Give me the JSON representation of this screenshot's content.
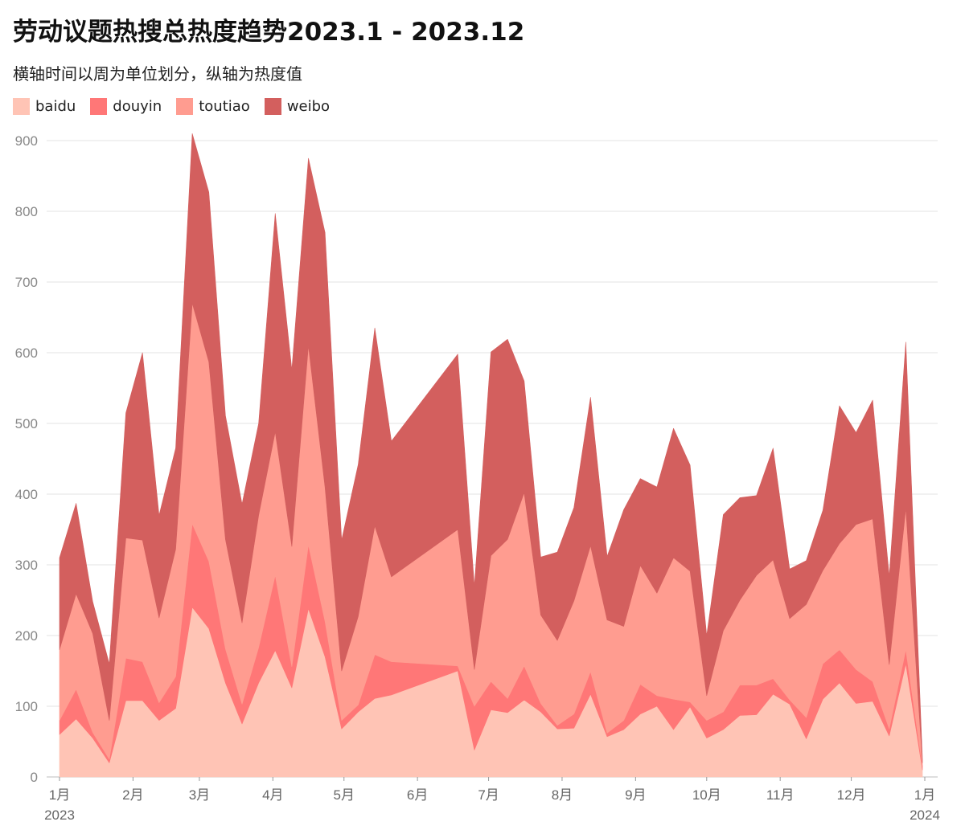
{
  "chart_data": {
    "type": "area",
    "stacked": true,
    "title": "劳动议题热搜总热度趋势2023.1 - 2023.12",
    "subtitle": "横轴时间以周为单位划分，纵轴为热度值",
    "ylim": [
      0,
      900
    ],
    "yticks": [
      0,
      100,
      200,
      300,
      400,
      500,
      600,
      700,
      800,
      900
    ],
    "grid": true,
    "legend_position": "top-left",
    "x_ticks": [
      {
        "date": "2023-01-01",
        "label": "1月",
        "sub": "2023"
      },
      {
        "date": "2023-02-01",
        "label": "2月",
        "sub": ""
      },
      {
        "date": "2023-03-01",
        "label": "3月",
        "sub": ""
      },
      {
        "date": "2023-04-01",
        "label": "4月",
        "sub": ""
      },
      {
        "date": "2023-05-01",
        "label": "5月",
        "sub": ""
      },
      {
        "date": "2023-06-01",
        "label": "6月",
        "sub": ""
      },
      {
        "date": "2023-07-01",
        "label": "7月",
        "sub": ""
      },
      {
        "date": "2023-08-01",
        "label": "8月",
        "sub": ""
      },
      {
        "date": "2023-09-01",
        "label": "9月",
        "sub": ""
      },
      {
        "date": "2023-10-01",
        "label": "10月",
        "sub": ""
      },
      {
        "date": "2023-11-01",
        "label": "11月",
        "sub": ""
      },
      {
        "date": "2023-12-01",
        "label": "12月",
        "sub": ""
      },
      {
        "date": "2024-01-01",
        "label": "1月",
        "sub": "2024"
      }
    ],
    "x": [
      "2023-01-01",
      "2023-01-08",
      "2023-01-15",
      "2023-01-22",
      "2023-01-29",
      "2023-02-05",
      "2023-02-12",
      "2023-02-19",
      "2023-02-26",
      "2023-03-05",
      "2023-03-12",
      "2023-03-19",
      "2023-03-26",
      "2023-04-02",
      "2023-04-09",
      "2023-04-16",
      "2023-04-23",
      "2023-04-30",
      "2023-05-07",
      "2023-05-14",
      "2023-05-21",
      "2023-06-18",
      "2023-06-25",
      "2023-07-02",
      "2023-07-09",
      "2023-07-16",
      "2023-07-23",
      "2023-07-30",
      "2023-08-06",
      "2023-08-13",
      "2023-08-20",
      "2023-08-27",
      "2023-09-03",
      "2023-09-10",
      "2023-09-17",
      "2023-09-24",
      "2023-10-01",
      "2023-10-08",
      "2023-10-15",
      "2023-10-22",
      "2023-10-29",
      "2023-11-05",
      "2023-11-12",
      "2023-11-19",
      "2023-11-26",
      "2023-12-03",
      "2023-12-10",
      "2023-12-17",
      "2023-12-24",
      "2023-12-31"
    ],
    "series": [
      {
        "name": "baidu",
        "color": "#ffc4b5",
        "values": [
          60,
          82,
          55,
          20,
          108,
          108,
          80,
          97,
          240,
          210,
          133,
          75,
          133,
          179,
          126,
          238,
          170,
          68,
          92,
          111,
          116,
          150,
          38,
          95,
          91,
          109,
          92,
          68,
          69,
          117,
          57,
          67,
          89,
          100,
          67,
          99,
          55,
          67,
          87,
          88,
          117,
          103,
          54,
          110,
          133,
          104,
          107,
          58,
          160,
          10
        ]
      },
      {
        "name": "douyin",
        "color": "#ff7777",
        "values": [
          20,
          42,
          8,
          5,
          60,
          55,
          25,
          45,
          118,
          95,
          48,
          28,
          50,
          106,
          30,
          90,
          50,
          12,
          10,
          62,
          47,
          7,
          62,
          40,
          20,
          48,
          12,
          5,
          20,
          32,
          5,
          13,
          42,
          15,
          43,
          7,
          25,
          25,
          43,
          42,
          22,
          6,
          30,
          50,
          47,
          48,
          28,
          10,
          20,
          5
        ]
      },
      {
        "name": "toutiao",
        "color": "#ff9c90",
        "values": [
          100,
          135,
          140,
          55,
          170,
          172,
          120,
          180,
          312,
          282,
          155,
          115,
          187,
          203,
          170,
          282,
          190,
          70,
          125,
          182,
          120,
          193,
          52,
          178,
          225,
          245,
          125,
          120,
          160,
          178,
          160,
          133,
          168,
          145,
          200,
          185,
          35,
          115,
          120,
          155,
          168,
          115,
          160,
          132,
          150,
          205,
          230,
          91,
          200,
          5
        ]
      },
      {
        "name": "weibo",
        "color": "#d35f5e",
        "values": [
          130,
          128,
          45,
          80,
          177,
          265,
          145,
          143,
          240,
          240,
          175,
          168,
          130,
          309,
          250,
          265,
          360,
          185,
          215,
          280,
          192,
          248,
          118,
          288,
          283,
          158,
          82,
          125,
          132,
          210,
          90,
          165,
          123,
          150,
          183,
          150,
          85,
          164,
          145,
          113,
          158,
          70,
          62,
          85,
          195,
          130,
          168,
          125,
          235,
          5
        ]
      }
    ]
  }
}
